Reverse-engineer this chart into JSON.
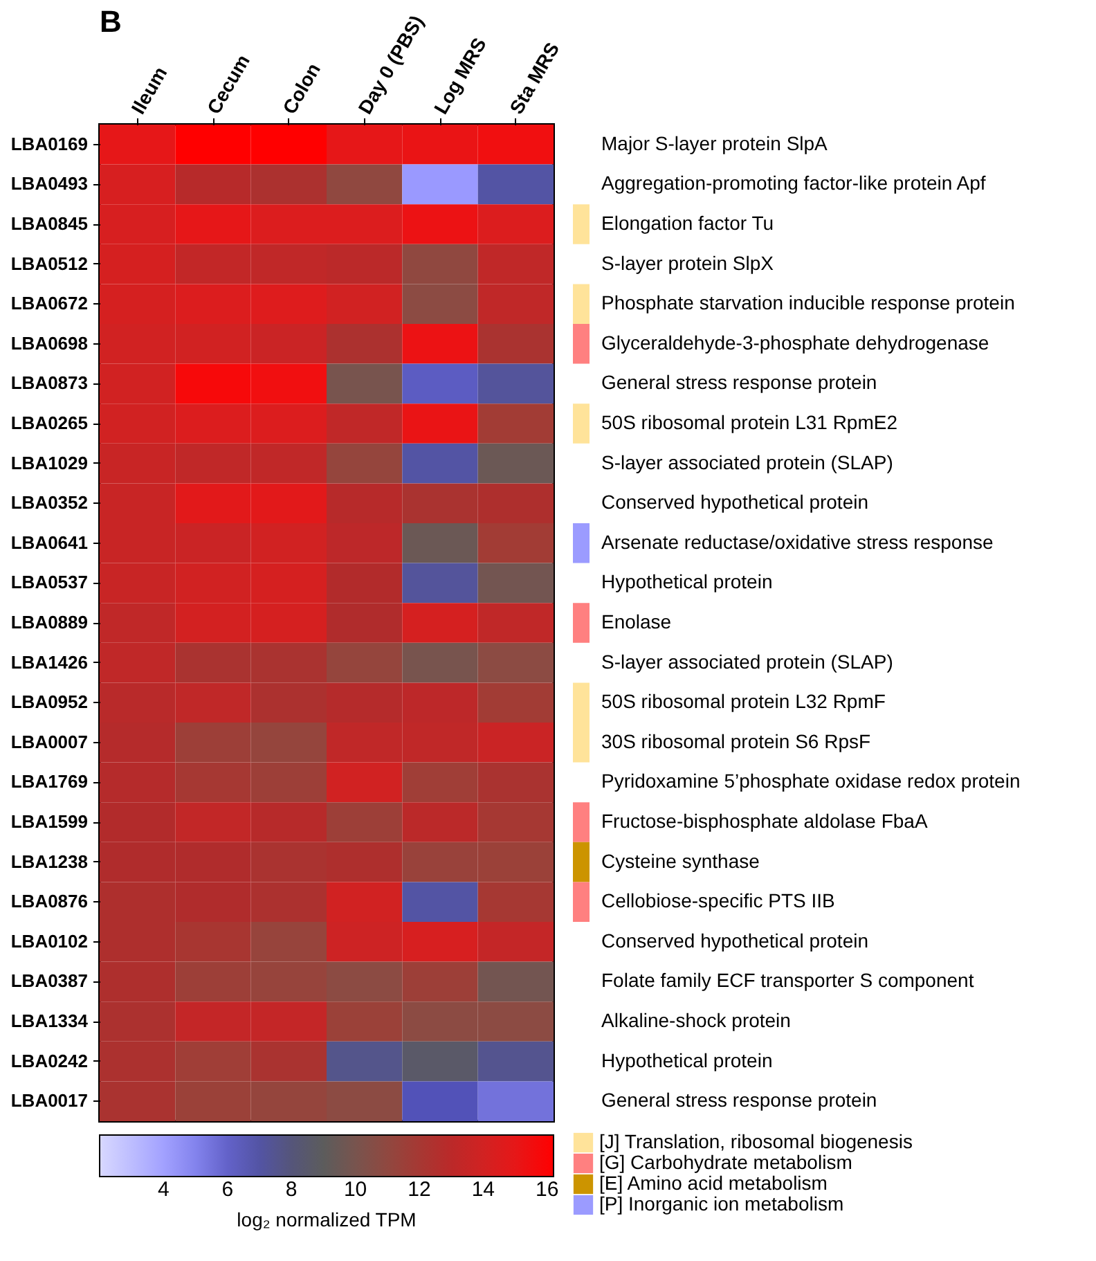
{
  "chart_data": {
    "type": "heatmap",
    "title": "B",
    "categories": [
      "Ileum",
      "Cecum",
      "Colon",
      "Day 0 (PBS)",
      "Log MRS",
      "Sta MRS"
    ],
    "y_categories": [
      "LBA0169",
      "LBA0493",
      "LBA0845",
      "LBA0512",
      "LBA0672",
      "LBA0698",
      "LBA0873",
      "LBA0265",
      "LBA1029",
      "LBA0352",
      "LBA0641",
      "LBA0537",
      "LBA0889",
      "LBA1426",
      "LBA0952",
      "LBA0007",
      "LBA1769",
      "LBA1599",
      "LBA1238",
      "LBA0876",
      "LBA0102",
      "LBA0387",
      "LBA1334",
      "LBA0242",
      "LBA0017"
    ],
    "y2_categories": [
      "Major S-layer protein SlpA",
      "Aggregation-promoting factor-like protein Apf",
      "Elongation factor Tu",
      "S-layer protein SlpX",
      "Phosphate starvation inducible response protein",
      "Glyceraldehyde-3-phosphate dehydrogenase",
      "General stress response protein",
      "50S ribosomal protein L31 RpmE2",
      "S-layer associated protein (SLAP)",
      "Conserved hypothetical protein",
      "Arsenate reductase/oxidative stress response",
      "Hypothetical protein",
      "Enolase",
      "S-layer associated protein (SLAP)",
      "50S ribosomal protein L32 RpmF",
      "30S ribosomal protein S6 RpsF",
      "Pyridoxamine 5’phosphate oxidase redox protein",
      "Fructose-bisphosphate aldolase FbaA",
      "Cysteine synthase",
      "Cellobiose-specific PTS IIB",
      "Conserved hypothetical protein",
      "Folate family ECF transporter S component",
      "Alkaline-shock protein",
      "Hypothetical protein",
      "General stress response protein"
    ],
    "cells": [
      [
        15,
        16.2,
        16.2,
        15,
        15.2,
        15.5
      ],
      [
        14.3,
        12.8,
        12.3,
        11,
        4.3,
        7
      ],
      [
        14.3,
        15,
        14.5,
        14.5,
        15.3,
        14.5
      ],
      [
        14.2,
        13.3,
        13.2,
        13,
        11,
        13.2
      ],
      [
        14.2,
        14.5,
        14.6,
        14,
        10.8,
        13.2
      ],
      [
        14,
        14,
        13.7,
        12.3,
        15.3,
        12.2
      ],
      [
        14,
        15.8,
        15.5,
        10,
        6.2,
        7.2
      ],
      [
        14,
        14.5,
        14.5,
        13.2,
        15.2,
        11.8
      ],
      [
        13.6,
        13.2,
        13.2,
        11.2,
        7,
        9.5
      ],
      [
        13.6,
        14.8,
        14.8,
        12.8,
        12.2,
        12.4
      ],
      [
        13.6,
        13.7,
        14,
        13.1,
        9.5,
        11.8
      ],
      [
        13.6,
        14,
        14.2,
        12.6,
        7.2,
        9.8
      ],
      [
        13.2,
        14.1,
        14.2,
        12.5,
        14.2,
        13.2
      ],
      [
        13.2,
        12.2,
        12.2,
        11.2,
        10,
        10.8
      ],
      [
        12.9,
        13.2,
        12.3,
        12.7,
        13.1,
        11.8
      ],
      [
        12.7,
        11.6,
        11.2,
        13.2,
        13.2,
        13.7
      ],
      [
        12.7,
        12,
        11.6,
        14,
        11.7,
        12.2
      ],
      [
        12.6,
        13.3,
        12.8,
        11.6,
        13,
        12
      ],
      [
        12.5,
        12.5,
        12.2,
        12.4,
        11.4,
        11.5
      ],
      [
        12.4,
        12.5,
        12.3,
        14,
        7,
        12
      ],
      [
        12.4,
        12.1,
        11.3,
        13.8,
        14.3,
        13.4
      ],
      [
        12.4,
        11.6,
        11.3,
        10.8,
        11.6,
        9.8
      ],
      [
        12.3,
        13.4,
        13.4,
        11.5,
        10.8,
        10.8
      ],
      [
        12.3,
        11.7,
        12.2,
        7.6,
        8.6,
        7.5
      ],
      [
        12.2,
        11.5,
        11.2,
        10.8,
        6.5,
        5.5
      ]
    ],
    "clim": [
      2,
      16.2
    ],
    "cticks": [
      4,
      6,
      8,
      10,
      12,
      14,
      16
    ],
    "clabel": "log₂ normalized TPM",
    "annotations": [
      "[J] Translation, ribosomal biogenesis",
      "[G] Carbohydrate metabolism",
      "[E] Amino acid metabolism",
      "[P] Inorganic ion metabolism"
    ]
  }
}
